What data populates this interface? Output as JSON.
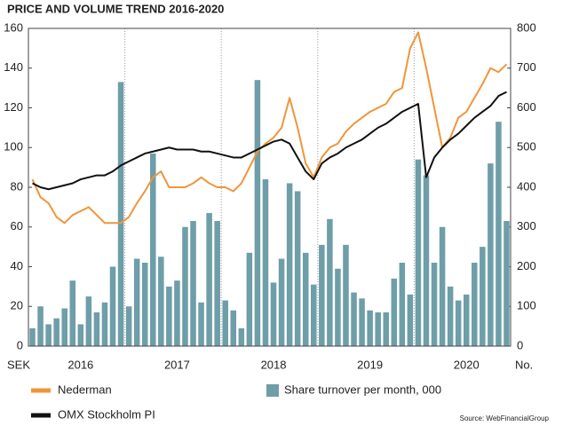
{
  "chart_data": {
    "type": "bar",
    "title": "PRICE AND VOLUME TREND 2016-2020",
    "y_label": "SEK",
    "y2_label": "No.",
    "source": "Source: WebFinancialGroup",
    "categories": [
      null,
      null,
      null,
      null,
      null,
      null,
      "2016",
      null,
      null,
      null,
      null,
      null,
      null,
      null,
      null,
      null,
      null,
      null,
      "2017",
      null,
      null,
      null,
      null,
      null,
      null,
      null,
      null,
      null,
      null,
      null,
      "2018",
      null,
      null,
      null,
      null,
      null,
      null,
      null,
      null,
      null,
      null,
      null,
      "2019",
      null,
      null,
      null,
      null,
      null,
      null,
      null,
      null,
      null,
      null,
      null,
      "2020",
      null,
      null,
      null,
      null,
      null
    ],
    "ylim": [
      0,
      160
    ],
    "yticks": [
      0,
      20,
      40,
      60,
      80,
      100,
      120,
      140,
      160
    ],
    "y2lim": [
      0,
      800
    ],
    "y2ticks": [
      0,
      100,
      200,
      300,
      400,
      500,
      600,
      700,
      800
    ],
    "series": [
      {
        "name": "Nederman",
        "type": "line",
        "color": "#f0953a",
        "values": [
          84,
          75,
          72,
          65,
          62,
          66,
          68,
          70,
          66,
          62,
          62,
          62,
          65,
          72,
          78,
          85,
          88,
          80,
          80,
          80,
          82,
          85,
          82,
          80,
          80,
          78,
          82,
          90,
          98,
          102,
          105,
          110,
          125,
          110,
          92,
          85,
          95,
          100,
          102,
          108,
          112,
          115,
          118,
          120,
          122,
          128,
          130,
          150,
          158,
          140,
          120,
          100,
          105,
          115,
          118,
          125,
          132,
          140,
          138,
          142
        ]
      },
      {
        "name": "OMX Stockholm PI",
        "type": "line",
        "color": "#111111",
        "values": [
          82,
          80,
          79,
          80,
          81,
          82,
          84,
          85,
          86,
          86,
          88,
          91,
          93,
          95,
          97,
          98,
          99,
          100,
          99,
          99,
          99,
          98,
          98,
          97,
          96,
          95,
          95,
          97,
          99,
          101,
          103,
          104,
          102,
          95,
          88,
          84,
          92,
          95,
          97,
          100,
          102,
          104,
          107,
          110,
          112,
          115,
          118,
          120,
          122,
          85,
          95,
          100,
          104,
          107,
          111,
          115,
          118,
          121,
          126,
          128
        ]
      },
      {
        "name": "Share turnover per month, 000",
        "type": "bar",
        "axis": "y2",
        "color": "#6e9ea8",
        "values": [
          45,
          100,
          55,
          70,
          95,
          165,
          55,
          125,
          85,
          110,
          200,
          665,
          100,
          220,
          210,
          485,
          225,
          150,
          165,
          300,
          315,
          110,
          335,
          315,
          115,
          90,
          45,
          235,
          670,
          420,
          160,
          220,
          410,
          390,
          235,
          155,
          255,
          320,
          195,
          255,
          135,
          120,
          90,
          85,
          85,
          170,
          210,
          130,
          470,
          430,
          210,
          300,
          150,
          115,
          130,
          210,
          250,
          460,
          565,
          315
        ]
      }
    ]
  }
}
